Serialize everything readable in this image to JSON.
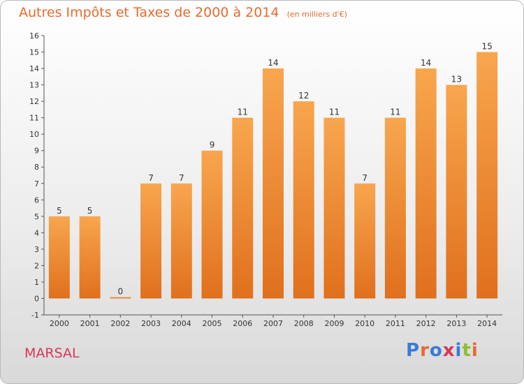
{
  "header": {
    "title": "Autres Impôts et Taxes de 2000 à 2014",
    "subtitle": "(en milliers d'€)"
  },
  "footer": {
    "town": "MARSAL",
    "logo_text": "Proxiti"
  },
  "colors": {
    "title": "#e86a2e",
    "town": "#d8365a",
    "bar_light": "#f8a64e",
    "bar_dark": "#e0701d",
    "logo_letters": [
      "#3a7bd5",
      "#e86a2e",
      "#3a7bd5",
      "#d8365a",
      "#3a7bd5",
      "#8bbf2f",
      "#e86a2e"
    ]
  },
  "chart_data": {
    "type": "bar",
    "title": "Autres Impôts et Taxes de 2000 à 2014",
    "categories": [
      "2000",
      "2001",
      "2002",
      "2003",
      "2004",
      "2005",
      "2006",
      "2007",
      "2008",
      "2009",
      "2010",
      "2011",
      "2012",
      "2013",
      "2014"
    ],
    "values": [
      5,
      5,
      0,
      7,
      7,
      9,
      11,
      14,
      12,
      11,
      7,
      11,
      14,
      13,
      15
    ],
    "ylim": [
      -1,
      16
    ],
    "yticks": [
      -1,
      0,
      1,
      2,
      3,
      4,
      5,
      6,
      7,
      8,
      9,
      10,
      11,
      12,
      13,
      14,
      15,
      16
    ],
    "grid": false,
    "legend": "none"
  }
}
